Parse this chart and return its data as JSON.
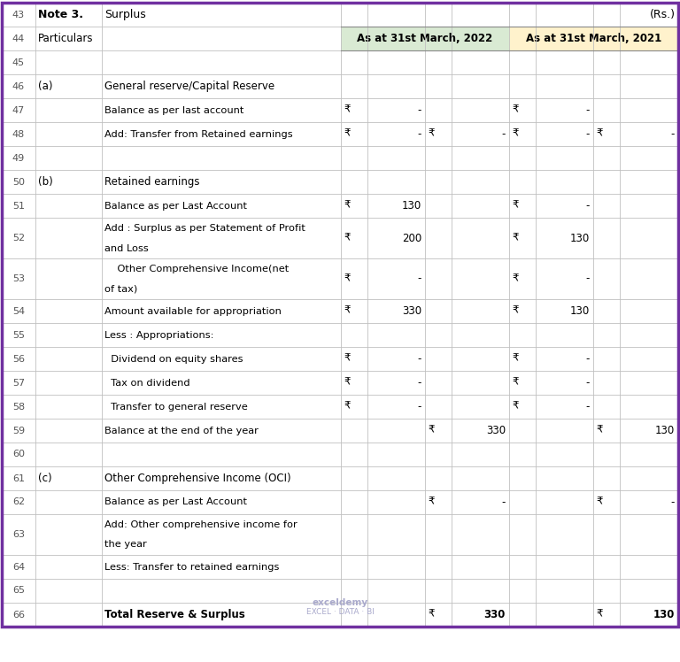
{
  "rows": [
    {
      "num": "43",
      "type": "title"
    },
    {
      "num": "44",
      "type": "header"
    },
    {
      "num": "45",
      "type": "blank"
    },
    {
      "num": "46",
      "type": "section",
      "label": "(a)",
      "text": "General reserve/Capital Reserve"
    },
    {
      "num": "47",
      "type": "data",
      "text": "Balance as per last account",
      "r1": "₹",
      "v1": "-",
      "r2": "",
      "v2": "",
      "r3": "₹",
      "v3": "-",
      "r4": "",
      "v4": ""
    },
    {
      "num": "48",
      "type": "data",
      "text": "Add: Transfer from Retained earnings",
      "r1": "₹",
      "v1": "-",
      "r2": "₹",
      "v2": "-",
      "r3": "₹",
      "v3": "-",
      "r4": "₹",
      "v4": "-"
    },
    {
      "num": "49",
      "type": "blank"
    },
    {
      "num": "50",
      "type": "section",
      "label": "(b)",
      "text": "Retained earnings"
    },
    {
      "num": "51",
      "type": "data",
      "text": "Balance as per Last Account",
      "r1": "₹",
      "v1": "130",
      "r2": "",
      "v2": "",
      "r3": "₹",
      "v3": "-",
      "r4": "",
      "v4": ""
    },
    {
      "num": "52",
      "type": "data2",
      "text": "Add : Surplus as per Statement of Profit\nand Loss",
      "r1": "₹",
      "v1": "200",
      "r2": "",
      "v2": "",
      "r3": "₹",
      "v3": "130",
      "r4": "",
      "v4": ""
    },
    {
      "num": "53",
      "type": "data2",
      "text": "    Other Comprehensive Income(net\nof tax)",
      "r1": "₹",
      "v1": "-",
      "r2": "",
      "v2": "",
      "r3": "₹",
      "v3": "-",
      "r4": "",
      "v4": ""
    },
    {
      "num": "54",
      "type": "data",
      "text": "Amount available for appropriation",
      "r1": "₹",
      "v1": "330",
      "r2": "",
      "v2": "",
      "r3": "₹",
      "v3": "130",
      "r4": "",
      "v4": ""
    },
    {
      "num": "55",
      "type": "data",
      "text": "Less : Appropriations:",
      "r1": "",
      "v1": "",
      "r2": "",
      "v2": "",
      "r3": "",
      "v3": "",
      "r4": "",
      "v4": ""
    },
    {
      "num": "56",
      "type": "data",
      "text": "  Dividend on equity shares",
      "r1": "₹",
      "v1": "-",
      "r2": "",
      "v2": "",
      "r3": "₹",
      "v3": "-",
      "r4": "",
      "v4": ""
    },
    {
      "num": "57",
      "type": "data",
      "text": "  Tax on dividend",
      "r1": "₹",
      "v1": "-",
      "r2": "",
      "v2": "",
      "r3": "₹",
      "v3": "-",
      "r4": "",
      "v4": ""
    },
    {
      "num": "58",
      "type": "data",
      "text": "  Transfer to general reserve",
      "r1": "₹",
      "v1": "-",
      "r2": "",
      "v2": "",
      "r3": "₹",
      "v3": "-",
      "r4": "",
      "v4": ""
    },
    {
      "num": "59",
      "type": "data",
      "text": "Balance at the end of the year",
      "r1": "",
      "v1": "",
      "r2": "₹",
      "v2": "330",
      "r3": "",
      "v3": "",
      "r4": "₹",
      "v4": "130"
    },
    {
      "num": "60",
      "type": "blank"
    },
    {
      "num": "61",
      "type": "section",
      "label": "(c)",
      "text": "Other Comprehensive Income (OCI)"
    },
    {
      "num": "62",
      "type": "data",
      "text": "Balance as per Last Account",
      "r1": "",
      "v1": "",
      "r2": "₹",
      "v2": "-",
      "r3": "",
      "v3": "",
      "r4": "₹",
      "v4": "-"
    },
    {
      "num": "63",
      "type": "data2",
      "text": "Add: Other comprehensive income for\nthe year",
      "r1": "",
      "v1": "",
      "r2": "",
      "v2": "",
      "r3": "",
      "v3": "",
      "r4": "",
      "v4": ""
    },
    {
      "num": "64",
      "type": "data",
      "text": "Less: Transfer to retained earnings",
      "r1": "",
      "v1": "",
      "r2": "",
      "v2": "",
      "r3": "",
      "v3": "",
      "r4": "",
      "v4": ""
    },
    {
      "num": "65",
      "type": "blank"
    },
    {
      "num": "66",
      "type": "total",
      "text": "Total Reserve & Surplus",
      "r1": "",
      "v1": "",
      "r2": "₹",
      "v2": "330",
      "r3": "",
      "v3": "",
      "r4": "₹",
      "v4": "130"
    }
  ],
  "colors": {
    "header_2022_bg": "#d9ead3",
    "header_2021_bg": "#fff2cc",
    "white": "#ffffff",
    "outer_border": "#7030a0",
    "grid": "#c0c0c0",
    "row_num_text": "#555555",
    "text": "#000000"
  },
  "title_note": "Note 3.",
  "title_surplus": "Surplus",
  "title_rs": "(Rs.)",
  "hdr_2022": "As at 31st March, 2022",
  "hdr_2021": "As at 31st March, 2021",
  "particulars_label": "Particulars",
  "exceldemy_text": "exceldemy",
  "exceldemy_sub": "EXCEL · DATA · BI",
  "fig_w": 7.68,
  "fig_h": 7.48,
  "dpi": 100
}
